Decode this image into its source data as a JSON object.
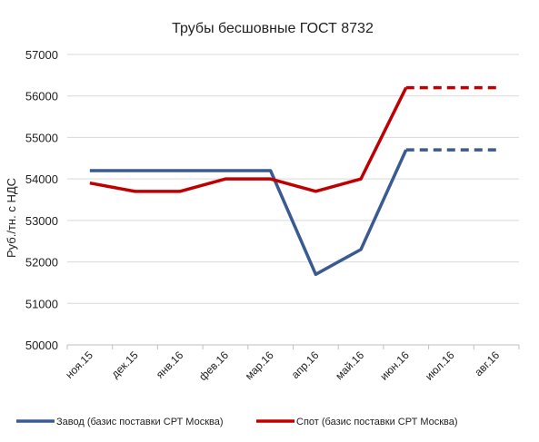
{
  "chart_data": {
    "type": "line",
    "title": "Трубы бесшовные ГОСТ 8732",
    "ylabel": "Руб./тн. с НДС",
    "xlabel": "",
    "ylim": [
      50000,
      57000
    ],
    "yticks": [
      50000,
      51000,
      52000,
      53000,
      54000,
      55000,
      56000,
      57000
    ],
    "grid": true,
    "legend_position": "bottom",
    "categories": [
      "ноя.15",
      "дек.15",
      "янв.16",
      "фев.16",
      "мар.16",
      "апр.16",
      "май.16",
      "июн.16",
      "июл.16",
      "авг.16"
    ],
    "series": [
      {
        "name": "Завод (базис поставки СРТ Москва)",
        "color": "#3a5a92",
        "values": [
          54200,
          54200,
          54200,
          54200,
          54200,
          51700,
          52300,
          54700,
          54700,
          54700
        ],
        "dashed_from_index": 7
      },
      {
        "name": "Спот (базис поставки СРТ Москва)",
        "color": "#c00000",
        "values": [
          53900,
          53700,
          53700,
          54000,
          54000,
          53700,
          54000,
          56200,
          56200,
          56200
        ],
        "dashed_from_index": 7
      }
    ]
  }
}
